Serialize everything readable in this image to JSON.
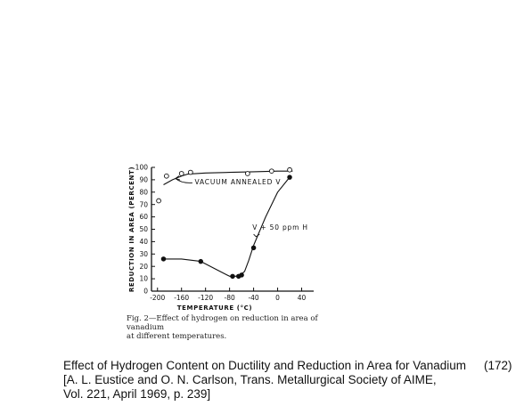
{
  "chart_data": {
    "type": "line",
    "xlabel": "TEMPERATURE (°C)",
    "ylabel": "REDUCTION IN AREA (PERCENT)",
    "xlim": [
      -210,
      60
    ],
    "ylim": [
      0,
      100
    ],
    "x_ticks": [
      -200,
      -160,
      -120,
      -80,
      -40,
      0,
      40
    ],
    "y_ticks": [
      0,
      10,
      20,
      30,
      40,
      50,
      60,
      70,
      80,
      90,
      100
    ],
    "grid": false,
    "series": [
      {
        "name": "VACUUM ANNEALED V",
        "marker": "open-circle",
        "x": [
          -198,
          -185,
          -160,
          -145,
          -50,
          -10,
          20
        ],
        "y": [
          73,
          93,
          95,
          96,
          95,
          97,
          98
        ],
        "curve_x": [
          -190,
          -175,
          -160,
          -150,
          -120,
          -80,
          -40,
          0,
          25
        ],
        "curve_y": [
          86,
          90,
          93,
          94.5,
          95.5,
          96,
          96.5,
          97,
          97
        ]
      },
      {
        "name": "V + 50 ppm H",
        "marker": "filled-circle",
        "x": [
          -190,
          -128,
          -75,
          -65,
          -60,
          -40,
          20
        ],
        "y": [
          26,
          24,
          12,
          12,
          13,
          35,
          92
        ],
        "curve_x": [
          -190,
          -160,
          -128,
          -100,
          -80,
          -70,
          -62,
          -55,
          -48,
          -40,
          -20,
          0,
          20
        ],
        "curve_y": [
          26,
          26,
          24,
          17,
          12,
          12,
          13,
          16,
          25,
          37,
          60,
          80,
          92
        ]
      }
    ]
  },
  "figure_caption": {
    "line1": "Fig. 2—Effect of hydrogen on reduction in area of vanadium",
    "line2": "at different temperatures."
  },
  "slide_caption": {
    "line1": "Effect of Hydrogen Content on Ductility and Reduction in Area for Vanadium",
    "line2": "[A. L. Eustice and O. N. Carlson, Trans. Metallurgical Society of AIME,",
    "line3": "Vol. 221, April 1969, p. 239]",
    "number": "(172)"
  }
}
